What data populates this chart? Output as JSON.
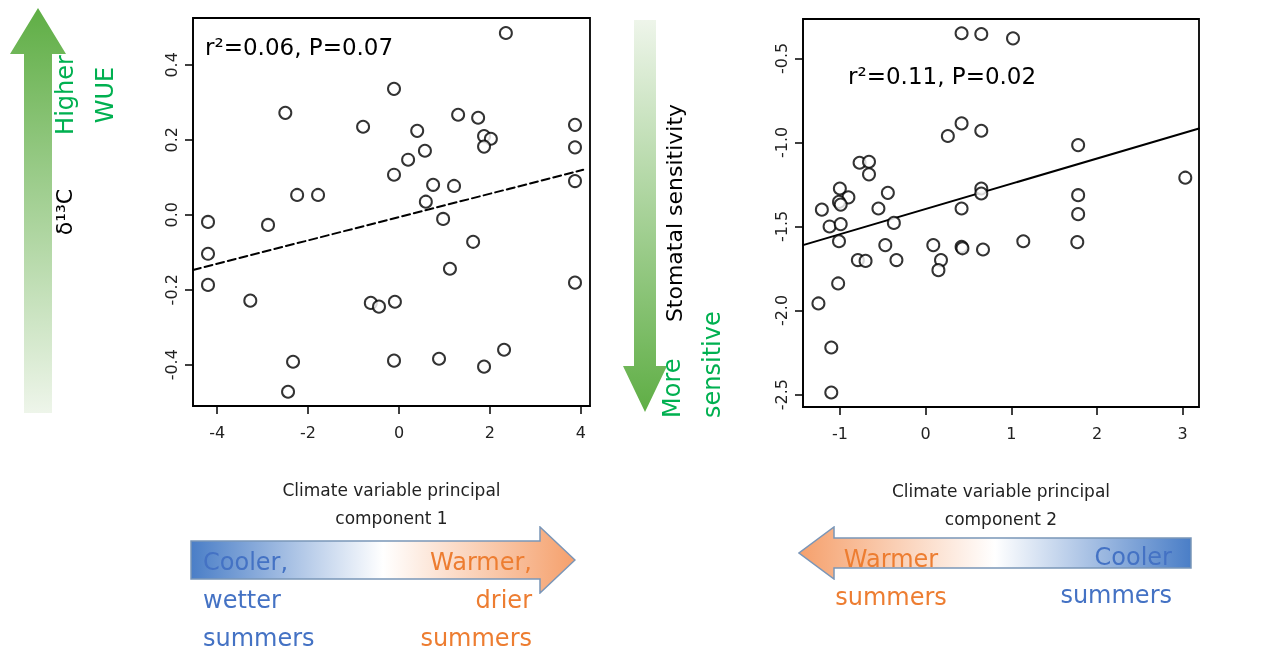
{
  "chart_data": [
    {
      "type": "scatter",
      "xlabel": "Climate variable principal component 1",
      "ylabel": "δ¹³C",
      "annotations": [
        "r²=0.06, P=0.07",
        "Higher WUE",
        "Cooler, wetter summers",
        "Warmer, drier summers"
      ],
      "xlim": [
        -4.53,
        4.2
      ],
      "ylim": [
        -0.51,
        0.525
      ],
      "xticks": [
        -4,
        -2,
        0,
        2,
        4
      ],
      "yticks": [
        -0.4,
        -0.2,
        {
          "value": 0,
          "label": "0.0"
        },
        0.2,
        0.4
      ],
      "marker": "circle",
      "series": [
        {
          "color": "#000000",
          "x": [
            2.35,
            -0.11,
            -2.5,
            -0.79,
            1.3,
            1.74,
            0.4,
            1.87,
            2.02,
            1.87,
            3.87,
            3.87,
            3.87,
            0.57,
            0.2,
            -0.11,
            0.75,
            1.21,
            -2.24,
            -1.78,
            0.59,
            0.97,
            -4.2,
            -2.88,
            1.63,
            -4.2,
            -4.2,
            1.12,
            3.87,
            -3.27,
            -0.62,
            -0.44,
            -0.09,
            -2.33,
            -2.44,
            -0.11,
            0.88,
            1.87,
            2.31
          ],
          "values": [
            0.485,
            0.336,
            0.272,
            0.235,
            0.267,
            0.259,
            0.224,
            0.21,
            0.203,
            0.182,
            0.24,
            0.18,
            0.09,
            0.171,
            0.147,
            0.107,
            0.08,
            0.077,
            0.053,
            0.053,
            0.035,
            -0.011,
            -0.019,
            -0.027,
            -0.072,
            -0.104,
            -0.187,
            -0.144,
            -0.181,
            -0.229,
            -0.235,
            -0.245,
            -0.232,
            -0.392,
            -0.472,
            -0.389,
            -0.384,
            -0.405,
            -0.36
          ]
        },
        {
          "type": "line",
          "color": "#000000",
          "marker": "none",
          "line_style": "dashed",
          "x": [
            -4.53,
            4.05
          ],
          "values": [
            -0.147,
            0.12
          ]
        }
      ]
    },
    {
      "type": "scatter",
      "xlabel": "Climate variable principal component 2",
      "ylabel": "Stomatal sensitivity",
      "annotations": [
        "r²=0.11, P=0.02",
        "More sensitive",
        "Warmer summers",
        "Cooler summers"
      ],
      "xlim": [
        -1.43,
        3.19
      ],
      "ylim": [
        -2.574,
        -0.266
      ],
      "xticks": [
        -1,
        0,
        1,
        2,
        3
      ],
      "yticks": [
        -2.5,
        {
          "value": -2,
          "label": "-2.0"
        },
        -1.5,
        {
          "value": -1,
          "label": "-1.0"
        },
        -0.5
      ],
      "marker": "circle",
      "series": [
        {
          "color": "#000000",
          "x": [
            0.42,
            0.65,
            1.02,
            0.42,
            0.26,
            0.65,
            1.78,
            -0.77,
            -0.66,
            -0.66,
            3.03,
            -1.0,
            -0.9,
            -1.01,
            -0.99,
            -0.44,
            -1.21,
            -0.55,
            0.42,
            0.65,
            0.65,
            1.78,
            1.78,
            -1.12,
            -0.99,
            -0.37,
            -1.01,
            1.77,
            -0.47,
            0.09,
            0.42,
            0.43,
            0.67,
            1.14,
            -0.79,
            -0.7,
            -0.34,
            0.18,
            0.15,
            -1.02,
            -1.25,
            -1.1,
            -1.1
          ],
          "values": [
            -0.351,
            -0.355,
            -0.381,
            -0.887,
            -0.962,
            -0.931,
            -1.016,
            -1.121,
            -1.115,
            -1.19,
            -1.21,
            -1.274,
            -1.327,
            -1.354,
            -1.37,
            -1.3,
            -1.4,
            -1.393,
            -1.393,
            -1.274,
            -1.304,
            -1.314,
            -1.427,
            -1.5,
            -1.486,
            -1.479,
            -1.588,
            -1.593,
            -1.611,
            -1.611,
            -1.621,
            -1.63,
            -1.637,
            -1.588,
            -1.7,
            -1.705,
            -1.7,
            -1.7,
            -1.76,
            -1.839,
            -1.958,
            -2.22,
            -2.488
          ]
        },
        {
          "type": "line",
          "color": "#000000",
          "marker": "none",
          "line_style": "solid",
          "x": [
            -1.43,
            3.19
          ],
          "values": [
            -1.611,
            -0.917
          ]
        }
      ]
    }
  ]
}
